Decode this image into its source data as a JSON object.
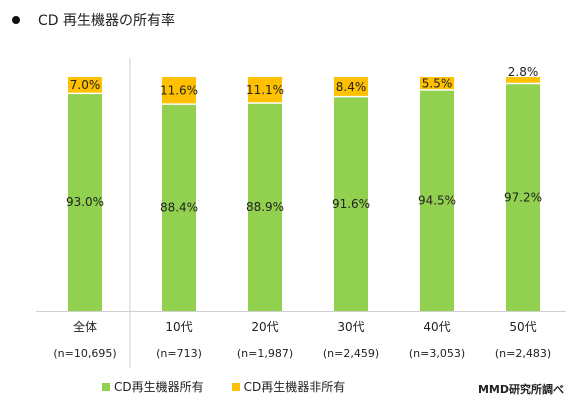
{
  "title": "CD 再生機器の所有率",
  "source": "MMD研究所調べ",
  "colors": {
    "own": "#92d050",
    "not_own": "#ffc000",
    "axis": "#d0d0d0"
  },
  "chart_data": {
    "type": "bar",
    "stacked": true,
    "percent": true,
    "categories": [
      "全体",
      "10代",
      "20代",
      "30代",
      "40代",
      "50代"
    ],
    "sample_sizes": [
      "(n=10,695)",
      "(n=713)",
      "(n=1,987)",
      "(n=2,459)",
      "(n=3,053)",
      "(n=2,483)"
    ],
    "series": [
      {
        "name": "CD再生機器所有",
        "values": [
          93.0,
          88.4,
          88.9,
          91.6,
          94.5,
          97.2
        ],
        "labels": [
          "93.0%",
          "88.4%",
          "88.9%",
          "91.6%",
          "94.5%",
          "97.2%"
        ]
      },
      {
        "name": "CD再生機器非所有",
        "values": [
          7.0,
          11.6,
          11.1,
          8.4,
          5.5,
          2.8
        ],
        "labels": [
          "7.0%",
          "11.6%",
          "11.1%",
          "8.4%",
          "5.5%",
          "2.8%"
        ]
      }
    ],
    "ylim": [
      0,
      100
    ],
    "grid": false,
    "legend": "bottom-left"
  }
}
